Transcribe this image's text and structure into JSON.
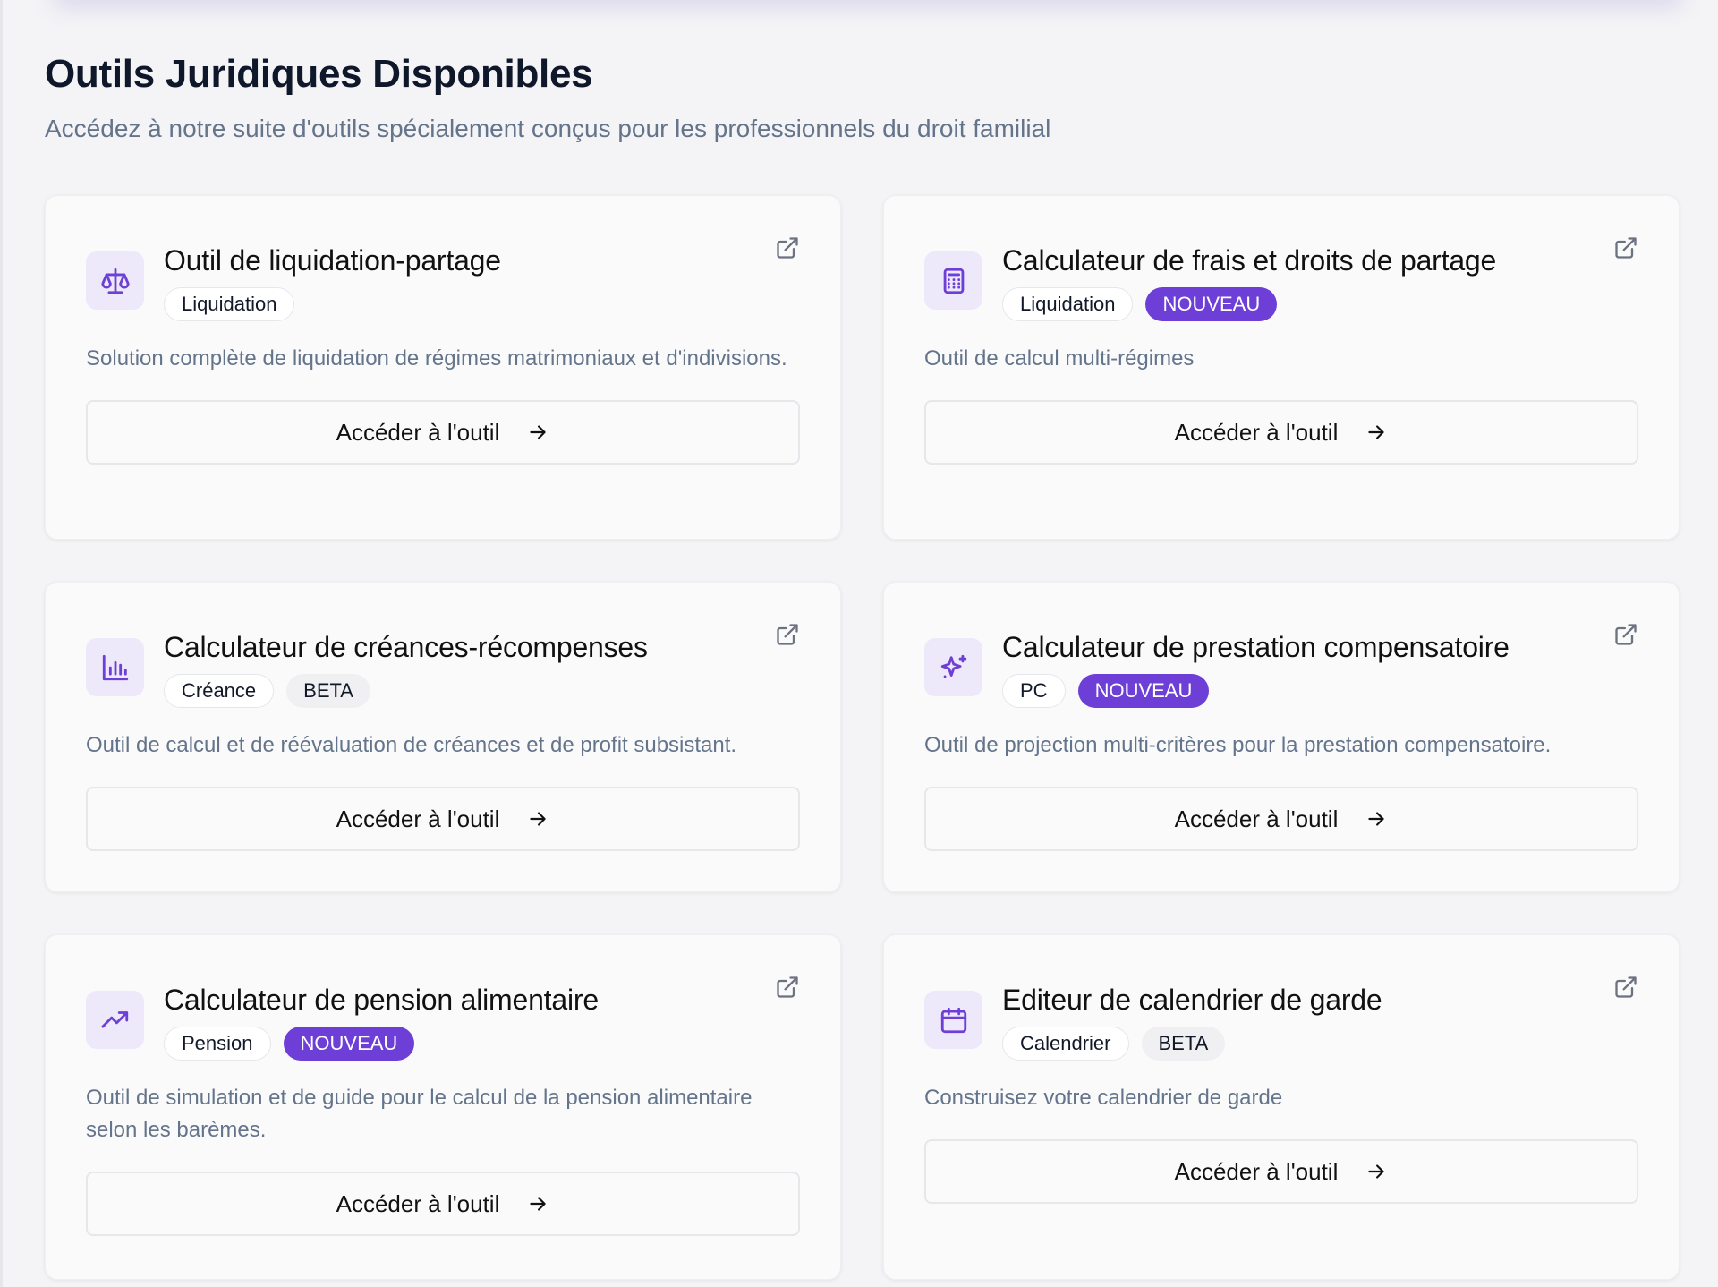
{
  "header": {
    "title": "Outils Juridiques Disponibles",
    "subtitle": "Accédez à notre suite d'outils spécialement conçus pour les professionnels du droit familial"
  },
  "accent": "#6d3fd6",
  "button_label": "Accéder à l'outil",
  "tools": [
    {
      "title": "Outil de liquidation-partage",
      "icon": "scale-icon",
      "badges": [
        {
          "label": "Liquidation",
          "style": "outline"
        }
      ],
      "description": "Solution complète de liquidation de régimes matrimoniaux et d'indivisions."
    },
    {
      "title": "Calculateur de frais et droits de partage",
      "icon": "calculator-icon",
      "badges": [
        {
          "label": "Liquidation",
          "style": "outline"
        },
        {
          "label": "NOUVEAU",
          "style": "new"
        }
      ],
      "description": "Outil de calcul multi-régimes"
    },
    {
      "title": "Calculateur de créances-récompenses",
      "icon": "bar-chart-icon",
      "badges": [
        {
          "label": "Créance",
          "style": "outline"
        },
        {
          "label": "BETA",
          "style": "gray"
        }
      ],
      "description": "Outil de calcul et de réévaluation de créances et de profit subsistant."
    },
    {
      "title": "Calculateur de prestation compensatoire",
      "icon": "sparkles-icon",
      "badges": [
        {
          "label": "PC",
          "style": "outline"
        },
        {
          "label": "NOUVEAU",
          "style": "new"
        }
      ],
      "description": "Outil de projection multi-critères pour la prestation compensatoire."
    },
    {
      "title": "Calculateur de pension alimentaire",
      "icon": "trending-up-icon",
      "badges": [
        {
          "label": "Pension",
          "style": "outline"
        },
        {
          "label": "NOUVEAU",
          "style": "new"
        }
      ],
      "description": "Outil de simulation et de guide pour le calcul de la pension alimentaire selon les barèmes."
    },
    {
      "title": "Editeur de calendrier de garde",
      "icon": "calendar-icon",
      "badges": [
        {
          "label": "Calendrier",
          "style": "outline"
        },
        {
          "label": "BETA",
          "style": "gray"
        }
      ],
      "description": "Construisez votre calendrier de garde"
    }
  ]
}
